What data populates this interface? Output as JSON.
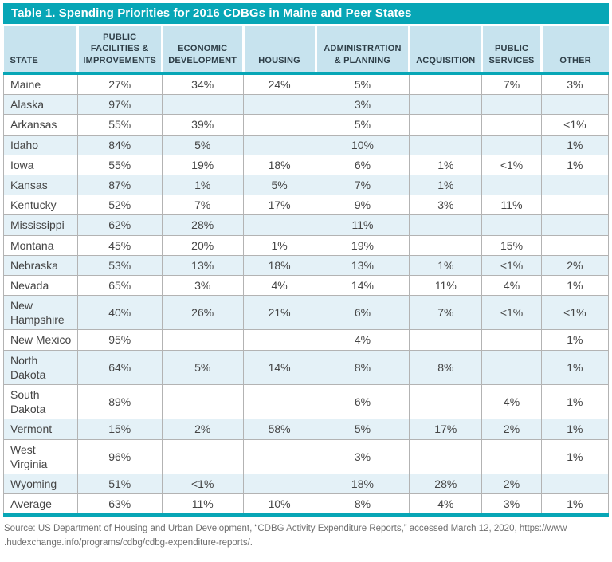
{
  "title": "Table 1. Spending Priorities for 2016 CDBGs in Maine and Peer States",
  "chart_data": {
    "type": "table",
    "columns": [
      "STATE",
      "PUBLIC FACILITIES & IMPROVEMENTS",
      "ECONOMIC DEVELOPMENT",
      "HOUSING",
      "ADMINISTRATION & PLANNING",
      "ACQUISITION",
      "PUBLIC SERVICES",
      "OTHER"
    ],
    "rows": [
      {
        "state": "Maine",
        "values": [
          "27%",
          "34%",
          "24%",
          "5%",
          "",
          "7%",
          "3%"
        ]
      },
      {
        "state": "Alaska",
        "values": [
          "97%",
          "",
          "",
          "3%",
          "",
          "",
          ""
        ]
      },
      {
        "state": "Arkansas",
        "values": [
          "55%",
          "39%",
          "",
          "5%",
          "",
          "",
          "<1%"
        ]
      },
      {
        "state": "Idaho",
        "values": [
          "84%",
          "5%",
          "",
          "10%",
          "",
          "",
          "1%"
        ]
      },
      {
        "state": "Iowa",
        "values": [
          "55%",
          "19%",
          "18%",
          "6%",
          "1%",
          "<1%",
          "1%"
        ]
      },
      {
        "state": "Kansas",
        "values": [
          "87%",
          "1%",
          "5%",
          "7%",
          "1%",
          "",
          ""
        ]
      },
      {
        "state": "Kentucky",
        "values": [
          "52%",
          "7%",
          "17%",
          "9%",
          "3%",
          "11%",
          ""
        ]
      },
      {
        "state": "Mississippi",
        "values": [
          "62%",
          "28%",
          "",
          "11%",
          "",
          "",
          ""
        ]
      },
      {
        "state": "Montana",
        "values": [
          "45%",
          "20%",
          "1%",
          "19%",
          "",
          "15%",
          ""
        ]
      },
      {
        "state": "Nebraska",
        "values": [
          "53%",
          "13%",
          "18%",
          "13%",
          "1%",
          "<1%",
          "2%"
        ]
      },
      {
        "state": "Nevada",
        "values": [
          "65%",
          "3%",
          "4%",
          "14%",
          "11%",
          "4%",
          "1%"
        ]
      },
      {
        "state": "New Hampshire",
        "values": [
          "40%",
          "26%",
          "21%",
          "6%",
          "7%",
          "<1%",
          "<1%"
        ]
      },
      {
        "state": "New Mexico",
        "values": [
          "95%",
          "",
          "",
          "4%",
          "",
          "",
          "1%"
        ]
      },
      {
        "state": "North Dakota",
        "values": [
          "64%",
          "5%",
          "14%",
          "8%",
          "8%",
          "",
          "1%"
        ]
      },
      {
        "state": "South Dakota",
        "values": [
          "89%",
          "",
          "",
          "6%",
          "",
          "4%",
          "1%"
        ]
      },
      {
        "state": "Vermont",
        "values": [
          "15%",
          "2%",
          "58%",
          "5%",
          "17%",
          "2%",
          "1%"
        ]
      },
      {
        "state": "West Virginia",
        "values": [
          "96%",
          "",
          "",
          "3%",
          "",
          "",
          "1%"
        ]
      },
      {
        "state": "Wyoming",
        "values": [
          "51%",
          "<1%",
          "",
          "18%",
          "28%",
          "2%",
          ""
        ]
      },
      {
        "state": "Average",
        "values": [
          "63%",
          "11%",
          "10%",
          "8%",
          "4%",
          "3%",
          "1%"
        ]
      }
    ]
  },
  "source": {
    "line1": "Source: US Department of Housing and Urban Development, “CDBG Activity Expenditure Reports,” accessed March 12, 2020, https://www",
    "line2": ".hudexchange.info/programs/cdbg/cdbg-expenditure-reports/."
  },
  "colors": {
    "teal": "#07a6b6",
    "header_bg": "#c7e3ee",
    "alt_row_bg": "#e4f1f7",
    "grid": "#b3b3b3"
  }
}
